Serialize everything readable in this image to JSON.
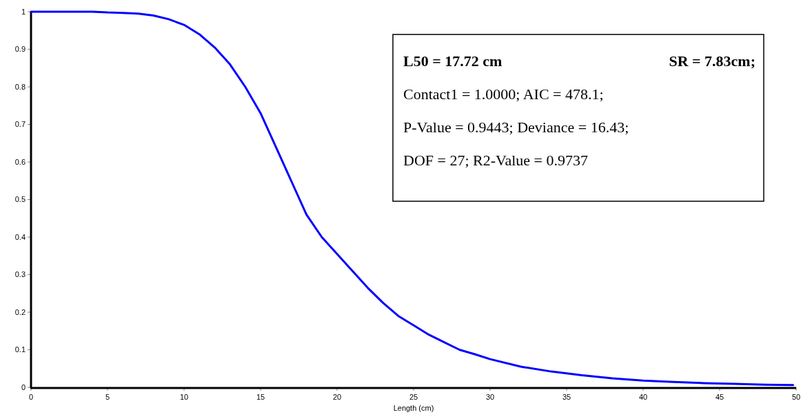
{
  "chart_data": {
    "type": "line",
    "xlabel": "Length (cm)",
    "xlim": [
      0,
      50
    ],
    "xticks": [
      0,
      5,
      10,
      15,
      20,
      25,
      30,
      35,
      40,
      45,
      50
    ],
    "ylim": [
      0,
      1
    ],
    "yticks": [
      0,
      0.1,
      0.2,
      0.3,
      0.4,
      0.5,
      0.6,
      0.7,
      0.8,
      0.9,
      1
    ],
    "grid": false,
    "marker": "none",
    "line_style": "solid",
    "series": [
      {
        "color": "#0000ff",
        "x": [
          0,
          4,
          5,
          6,
          7,
          8,
          9,
          10,
          11,
          12,
          13,
          14,
          15,
          16,
          17,
          18,
          19,
          20,
          21,
          22,
          23,
          24,
          25,
          26,
          27,
          28,
          29,
          30,
          32,
          34,
          36,
          38,
          40,
          42,
          44,
          46,
          48,
          49.8
        ],
        "values": [
          1,
          1,
          0.998,
          0.997,
          0.995,
          0.99,
          0.98,
          0.965,
          0.94,
          0.905,
          0.86,
          0.8,
          0.73,
          0.64,
          0.55,
          0.46,
          0.4,
          0.355,
          0.31,
          0.265,
          0.225,
          0.19,
          0.165,
          0.14,
          0.12,
          0.1,
          0.088,
          0.075,
          0.055,
          0.042,
          0.032,
          0.024,
          0.018,
          0.014,
          0.011,
          0.009,
          0.007,
          0.006
        ]
      }
    ],
    "annotations": [
      "L50 = 17.72 cm",
      "SR = 7.83cm;",
      "Contact1 = 1.0000; AIC = 478.1;",
      "P-Value = 0.9443; Deviance = 16.43;",
      "DOF = 27; R2-Value = 0.9737"
    ]
  }
}
